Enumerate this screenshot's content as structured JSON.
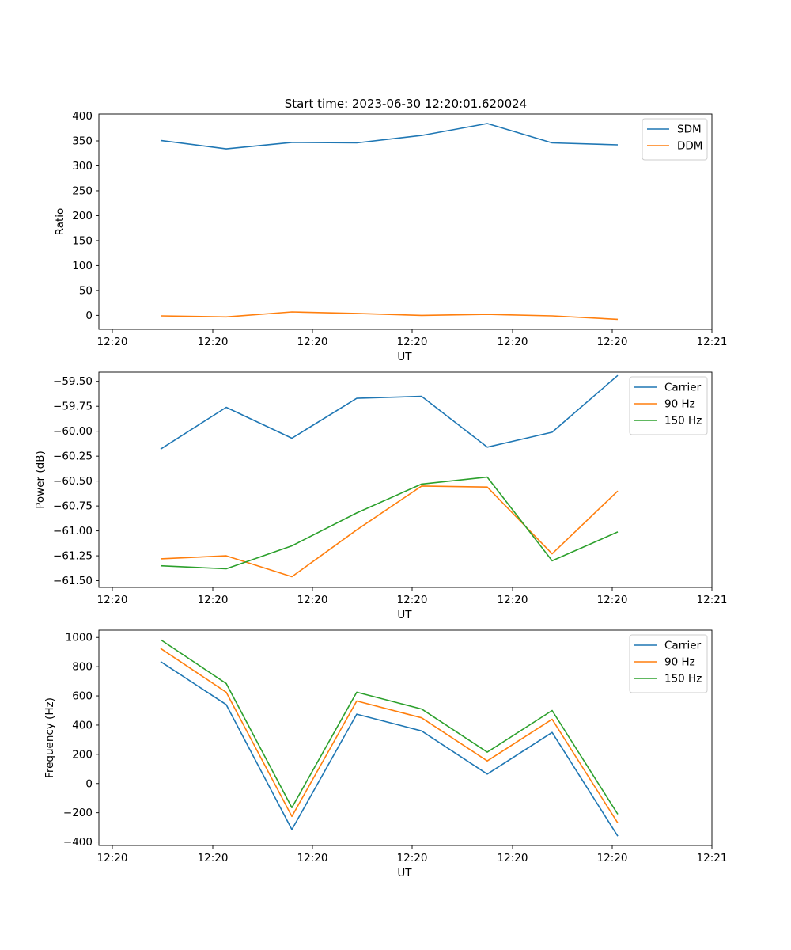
{
  "figure": {
    "title": "Start time: 2023-06-30 12:20:01.620024"
  },
  "colors": {
    "blue": "#1f77b4",
    "orange": "#ff7f0e",
    "green": "#2ca02c"
  },
  "chart_data": [
    {
      "type": "line",
      "xlabel": "UT",
      "ylabel": "Ratio",
      "x_tick_labels": [
        "12:20",
        "12:20",
        "12:20",
        "12:20",
        "12:20",
        "12:20",
        "12:21"
      ],
      "y_ticks": [
        0,
        50,
        100,
        150,
        200,
        250,
        300,
        350,
        400
      ],
      "y_tick_labels": [
        "0",
        "50",
        "100",
        "150",
        "200",
        "250",
        "300",
        "350",
        "400"
      ],
      "ylim": [
        -28,
        404
      ],
      "legend_position": "top-right",
      "series": [
        {
          "name": "SDM",
          "color": "#1f77b4",
          "values": [
            351,
            334,
            347,
            346,
            361,
            385,
            346,
            342
          ]
        },
        {
          "name": "DDM",
          "color": "#ff7f0e",
          "values": [
            -1,
            -3,
            7,
            4,
            0,
            2,
            -1,
            -8
          ]
        }
      ]
    },
    {
      "type": "line",
      "xlabel": "UT",
      "ylabel": "Power (dB)",
      "x_tick_labels": [
        "12:20",
        "12:20",
        "12:20",
        "12:20",
        "12:20",
        "12:20",
        "12:21"
      ],
      "y_ticks": [
        -61.5,
        -61.25,
        -61.0,
        -60.75,
        -60.5,
        -60.25,
        -60.0,
        -59.75,
        -59.5
      ],
      "y_tick_labels": [
        "−61.50",
        "−61.25",
        "−61.00",
        "−60.75",
        "−60.50",
        "−60.25",
        "−60.00",
        "−59.75",
        "−59.50"
      ],
      "ylim": [
        -61.567,
        -59.407
      ],
      "legend_position": "top-right",
      "series": [
        {
          "name": "Carrier",
          "color": "#1f77b4",
          "values": [
            -60.18,
            -59.76,
            -60.07,
            -59.67,
            -59.65,
            -60.16,
            -60.01,
            -59.44
          ]
        },
        {
          "name": "90 Hz",
          "color": "#ff7f0e",
          "values": [
            -61.28,
            -61.25,
            -61.46,
            -60.99,
            -60.55,
            -60.56,
            -61.23,
            -60.6
          ]
        },
        {
          "name": "150 Hz",
          "color": "#2ca02c",
          "values": [
            -61.35,
            -61.38,
            -61.15,
            -60.82,
            -60.53,
            -60.46,
            -61.3,
            -61.01
          ]
        }
      ]
    },
    {
      "type": "line",
      "xlabel": "UT",
      "ylabel": "Frequency (Hz)",
      "x_tick_labels": [
        "12:20",
        "12:20",
        "12:20",
        "12:20",
        "12:20",
        "12:20",
        "12:21"
      ],
      "y_ticks": [
        -400,
        -200,
        0,
        200,
        400,
        600,
        800,
        1000
      ],
      "y_tick_labels": [
        "−400",
        "−200",
        "0",
        "200",
        "400",
        "600",
        "800",
        "1000"
      ],
      "ylim": [
        -424,
        1050
      ],
      "legend_position": "top-right",
      "series": [
        {
          "name": "Carrier",
          "color": "#1f77b4",
          "values": [
            835,
            540,
            -315,
            475,
            360,
            65,
            350,
            -360
          ]
        },
        {
          "name": "90 Hz",
          "color": "#ff7f0e",
          "values": [
            925,
            625,
            -225,
            565,
            450,
            155,
            440,
            -270
          ]
        },
        {
          "name": "150 Hz",
          "color": "#2ca02c",
          "values": [
            985,
            685,
            -165,
            625,
            510,
            215,
            500,
            -210
          ]
        }
      ]
    }
  ]
}
